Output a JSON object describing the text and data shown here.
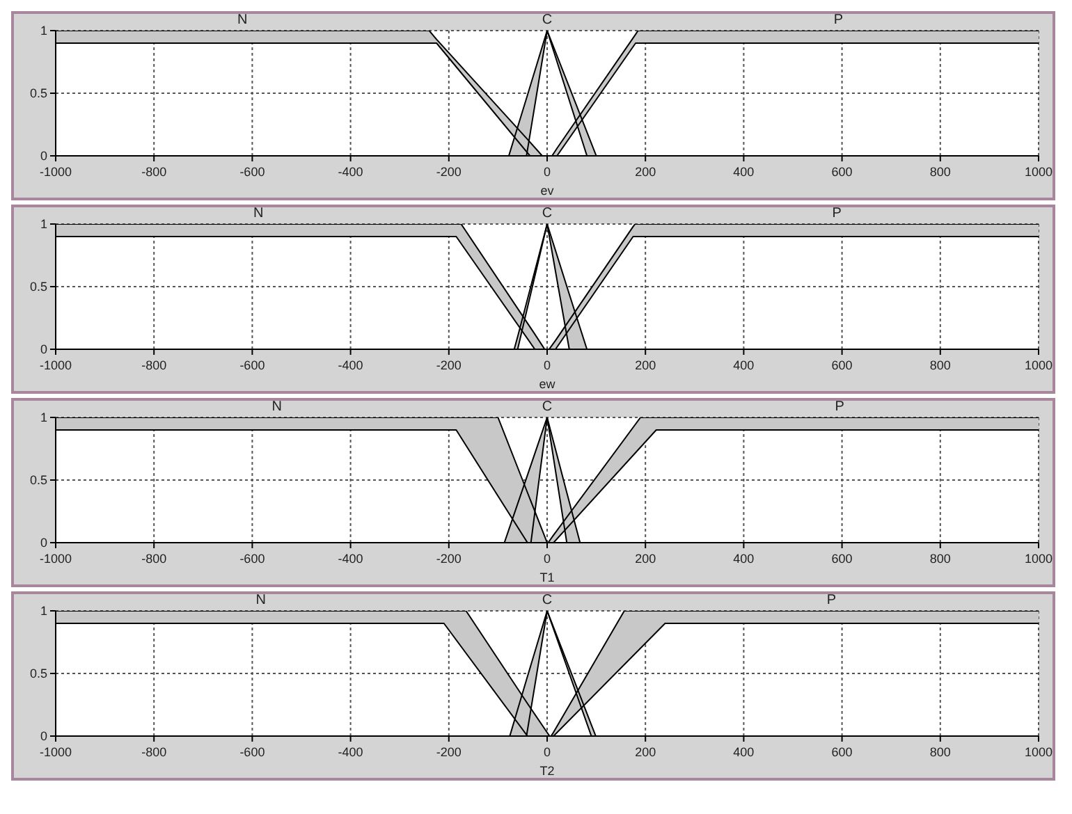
{
  "chart_data": [
    {
      "type": "line",
      "xlabel": "ev",
      "xlim": [
        -1000,
        1000
      ],
      "xticks": [
        -1000,
        -800,
        -600,
        -400,
        -200,
        0,
        200,
        400,
        600,
        800,
        1000
      ],
      "ylim": [
        0,
        1
      ],
      "yticks": [
        0,
        0.5,
        1
      ],
      "grid": true,
      "series": [
        {
          "name": "N",
          "color": "#000000",
          "x": [
            -1000,
            -240,
            -225,
            -35,
            -10
          ],
          "values": [
            1,
            1,
            0.93,
            0.11,
            0
          ],
          "upper": [
            1,
            1,
            0.93,
            0.11,
            0
          ],
          "lower": [
            0.9,
            0.9,
            0.9,
            0,
            0
          ]
        },
        {
          "color": "#000000",
          "x": [
            -1000,
            -225,
            -35
          ],
          "values": [
            0.9,
            0.9,
            0
          ]
        },
        {
          "name": "C",
          "color": "#000000",
          "x": [
            -78,
            -42,
            0,
            81,
            100
          ],
          "values": [
            0,
            0.46,
            1,
            0.19,
            0
          ],
          "upper": [
            0,
            0.46,
            1,
            0.19,
            0
          ],
          "lower": [
            0,
            0,
            1,
            0,
            0
          ]
        },
        {
          "color": "#000000",
          "x": [
            -42,
            0,
            81
          ],
          "values": [
            0,
            1,
            0
          ]
        },
        {
          "name": "P",
          "color": "#000000",
          "x": [
            10,
            20,
            180,
            185,
            1000
          ],
          "values": [
            0,
            0.06,
            0.97,
            1,
            1
          ],
          "upper": [
            0,
            0.06,
            0.97,
            1,
            1
          ],
          "lower": [
            0,
            0,
            0.9,
            0.9,
            0.9
          ]
        },
        {
          "color": "#000000",
          "x": [
            20,
            180,
            1000
          ],
          "values": [
            0,
            0.9,
            0.9
          ]
        }
      ]
    },
    {
      "type": "line",
      "xlabel": "ew",
      "xlim": [
        -1000,
        1000
      ],
      "xticks": [
        -1000,
        -800,
        -600,
        -400,
        -200,
        0,
        200,
        400,
        600,
        800,
        1000
      ],
      "ylim": [
        0,
        1
      ],
      "yticks": [
        0,
        0.5,
        1
      ],
      "grid": true,
      "series": [
        {
          "name": "N",
          "color": "#000000",
          "x": [
            -1000,
            -185,
            -175,
            -25,
            -5
          ],
          "values": [
            1,
            1,
            1,
            0.12,
            0
          ],
          "upper": [
            1,
            1,
            1,
            0.12,
            0
          ],
          "lower": [
            0.9,
            0.9,
            0.84,
            0,
            0
          ]
        },
        {
          "color": "#000000",
          "x": [
            -1000,
            -185,
            -25
          ],
          "values": [
            0.9,
            0.9,
            0
          ]
        },
        {
          "name": "C",
          "color": "#000000",
          "x": [
            -67,
            -60,
            0,
            45,
            81
          ],
          "values": [
            0,
            0.1,
            1,
            0.44,
            0
          ],
          "upper": [
            0,
            0.1,
            1,
            0.44,
            0
          ],
          "lower": [
            0,
            0,
            1,
            0,
            0
          ]
        },
        {
          "color": "#000000",
          "x": [
            -60,
            0,
            45
          ],
          "values": [
            0,
            1,
            0
          ]
        },
        {
          "name": "P",
          "color": "#000000",
          "x": [
            4,
            17,
            175,
            179,
            1000
          ],
          "values": [
            0,
            0.07,
            0.98,
            1,
            1
          ],
          "upper": [
            0,
            0.07,
            0.98,
            1,
            1
          ],
          "lower": [
            0,
            0,
            0.9,
            0.9,
            0.9
          ]
        },
        {
          "color": "#000000",
          "x": [
            17,
            175,
            1000
          ],
          "values": [
            0,
            0.9,
            0.9
          ]
        }
      ]
    },
    {
      "type": "line",
      "xlabel": "T1",
      "xlim": [
        -1000,
        1000
      ],
      "xticks": [
        -1000,
        -800,
        -600,
        -400,
        -200,
        0,
        200,
        400,
        600,
        800,
        1000
      ],
      "ylim": [
        0,
        1
      ],
      "yticks": [
        0,
        0.5,
        1
      ],
      "grid": true,
      "series": [
        {
          "name": "N",
          "color": "#000000",
          "x": [
            -1000,
            -185,
            -100,
            -40,
            0
          ],
          "values": [
            1,
            1,
            1,
            0.4,
            0
          ],
          "upper": [
            1,
            1,
            1,
            0.4,
            0
          ],
          "lower": [
            0.9,
            0.9,
            0.37,
            0,
            0
          ]
        },
        {
          "color": "#000000",
          "x": [
            -1000,
            -185,
            -40
          ],
          "values": [
            0.9,
            0.9,
            0
          ]
        },
        {
          "name": "C",
          "color": "#000000",
          "x": [
            -87,
            -33,
            0,
            40,
            67
          ],
          "values": [
            0,
            0.62,
            1,
            0.4,
            0
          ],
          "upper": [
            0,
            0.62,
            1,
            0.4,
            0
          ],
          "lower": [
            0,
            0,
            1,
            0,
            0
          ]
        },
        {
          "color": "#000000",
          "x": [
            -33,
            0,
            40
          ],
          "values": [
            0,
            1,
            0
          ]
        },
        {
          "name": "P",
          "color": "#000000",
          "x": [
            2,
            13,
            190,
            222,
            1000
          ],
          "values": [
            0,
            0.06,
            1,
            1,
            1
          ],
          "upper": [
            0,
            0.06,
            1,
            1,
            1
          ],
          "lower": [
            0,
            0,
            0.76,
            0.9,
            0.9
          ]
        },
        {
          "color": "#000000",
          "x": [
            13,
            222,
            1000
          ],
          "values": [
            0,
            0.9,
            0.9
          ]
        }
      ]
    },
    {
      "type": "line",
      "xlabel": "T2",
      "xlim": [
        -1000,
        1000
      ],
      "xticks": [
        -1000,
        -800,
        -600,
        -400,
        -200,
        0,
        200,
        400,
        600,
        800,
        1000
      ],
      "ylim": [
        0,
        1
      ],
      "yticks": [
        0,
        0.5,
        1
      ],
      "grid": true,
      "series": [
        {
          "name": "N",
          "color": "#000000",
          "x": [
            -1000,
            -210,
            -165,
            -40,
            5
          ],
          "values": [
            1,
            1,
            1,
            0.26,
            0
          ],
          "upper": [
            1,
            1,
            1,
            0.26,
            0
          ],
          "lower": [
            0.9,
            0.9,
            0.66,
            0,
            0
          ]
        },
        {
          "color": "#000000",
          "x": [
            -1000,
            -210,
            -40
          ],
          "values": [
            0.9,
            0.9,
            0
          ]
        },
        {
          "name": "C",
          "color": "#000000",
          "x": [
            -76,
            -42,
            0,
            90,
            99
          ],
          "values": [
            0,
            0.45,
            1,
            0.09,
            0
          ],
          "upper": [
            0,
            0.45,
            1,
            0.09,
            0
          ],
          "lower": [
            0,
            0,
            1,
            0,
            0
          ]
        },
        {
          "color": "#000000",
          "x": [
            -42,
            0,
            90
          ],
          "values": [
            0,
            1,
            0
          ]
        },
        {
          "name": "P",
          "color": "#000000",
          "x": [
            8,
            13,
            157,
            240,
            1000
          ],
          "values": [
            0,
            0.03,
            1,
            1,
            1
          ],
          "upper": [
            0,
            0.03,
            1,
            1,
            1
          ],
          "lower": [
            0,
            0,
            0.57,
            0.9,
            0.9
          ]
        },
        {
          "color": "#000000",
          "x": [
            13,
            240,
            1000
          ],
          "values": [
            0,
            0.9,
            0.9
          ]
        }
      ]
    }
  ]
}
